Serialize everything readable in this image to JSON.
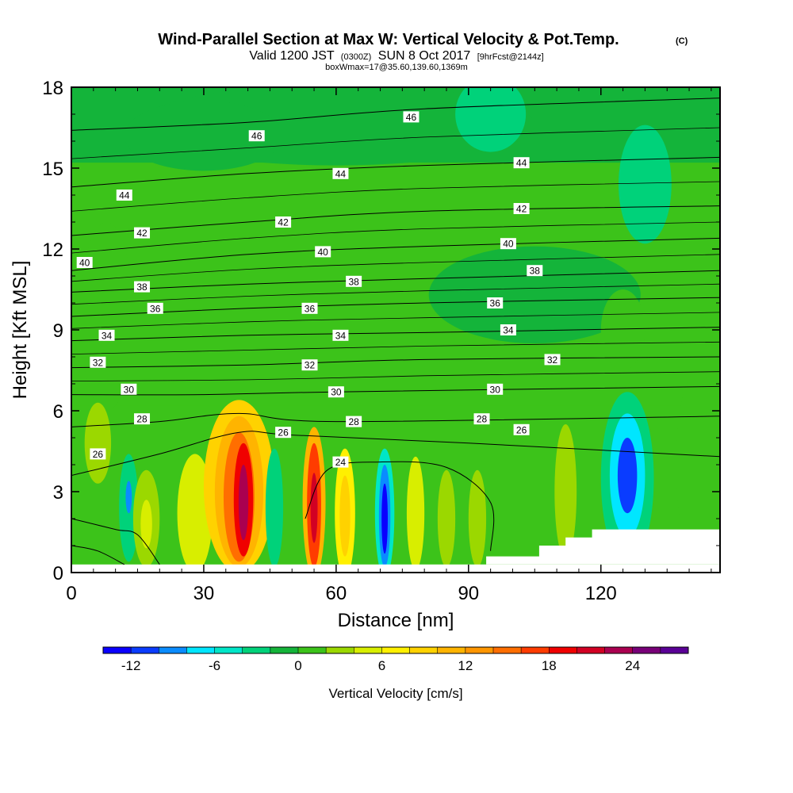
{
  "header": {
    "title": "Wind-Parallel Section at Max W: Vertical Velocity & Pot.Temp.",
    "copyright": "(C)",
    "valid_prefix": "Valid 1200 JST",
    "valid_utc": "(0300Z)",
    "valid_date": "SUN 8 Oct 2017",
    "forecast": "[9hrFcst@2144z]",
    "boxwmax": "boxWmax=17@35.60,139.60,1369m"
  },
  "chart_data": {
    "type": "heatmap",
    "xlabel": "Distance [nm]",
    "ylabel": "Height [Kft MSL]",
    "xlim": [
      0,
      147
    ],
    "ylim": [
      0,
      18
    ],
    "x_ticks": [
      0,
      30,
      60,
      90,
      120
    ],
    "y_ticks": [
      0,
      3,
      6,
      9,
      12,
      15,
      18
    ],
    "colorbar": {
      "label": "Vertical Velocity [cm/s]",
      "tick_values": [
        -12,
        -6,
        0,
        6,
        12,
        18,
        24
      ],
      "tick_labels": [
        "-12",
        "-6",
        "0",
        "6",
        "12",
        "18",
        "24"
      ],
      "bins": [
        -14,
        -12,
        -10,
        -8,
        -6,
        -4,
        -2,
        0,
        2,
        4,
        6,
        8,
        10,
        12,
        14,
        16,
        18,
        20,
        22,
        24,
        26,
        28
      ],
      "colors": [
        "#0a00ff",
        "#0a3cff",
        "#0a8cff",
        "#00e6ff",
        "#00e6c8",
        "#00d27a",
        "#14b43a",
        "#3cc31a",
        "#9bd800",
        "#d8ee00",
        "#fff000",
        "#ffd200",
        "#ffb400",
        "#ff9600",
        "#ff6e00",
        "#ff3c00",
        "#f00000",
        "#d20023",
        "#aa0050",
        "#780078",
        "#5a0096"
      ]
    },
    "background_value": 0.5,
    "cells": [
      {
        "x0": 0,
        "x1": 147,
        "y0": 15.2,
        "y1": 18,
        "value": -1
      },
      {
        "x0": 0,
        "x1": 147,
        "y0": 12.5,
        "y1": 15.2,
        "value": 0.5
      },
      {
        "x0": 0,
        "x1": 147,
        "y0": 6.2,
        "y1": 12.5,
        "value": 0.5
      },
      {
        "x0": 0,
        "x1": 147,
        "y0": 0.3,
        "y1": 6.2,
        "value": 0.5
      }
    ],
    "features": [
      {
        "cx": 60,
        "cy": 16.6,
        "rx": 45,
        "ry": 1.5,
        "value": -2
      },
      {
        "cx": 95,
        "cy": 17.0,
        "rx": 8,
        "ry": 1.4,
        "value": -3
      },
      {
        "cx": 130,
        "cy": 14.4,
        "rx": 6,
        "ry": 2.2,
        "value": -3
      },
      {
        "cx": 105,
        "cy": 10.3,
        "rx": 24,
        "ry": 1.8,
        "value": -2
      },
      {
        "cx": 30,
        "cy": 16.2,
        "rx": 18,
        "ry": 1.3,
        "value": -1.5
      },
      {
        "cx": 8,
        "cy": 9.5,
        "rx": 6,
        "ry": 3.5,
        "value": 1
      },
      {
        "cx": 125,
        "cy": 9.0,
        "rx": 5,
        "ry": 1.5,
        "value": 1
      },
      {
        "cx": 142,
        "cy": 4.0,
        "rx": 5,
        "ry": 3.5,
        "value": 1
      },
      {
        "cx": 6,
        "cy": 4.8,
        "rx": 3,
        "ry": 1.5,
        "value": 3
      },
      {
        "cx": 13,
        "cy": 2.4,
        "rx": 2.2,
        "ry": 2.0,
        "value": -4
      },
      {
        "cx": 13,
        "cy": 2.8,
        "rx": 0.7,
        "ry": 0.6,
        "value": -9
      },
      {
        "cx": 17,
        "cy": 2.0,
        "rx": 3,
        "ry": 1.8,
        "value": 3
      },
      {
        "cx": 17,
        "cy": 1.8,
        "rx": 1.3,
        "ry": 0.9,
        "value": 5
      },
      {
        "cx": 28,
        "cy": 2.2,
        "rx": 4,
        "ry": 2.2,
        "value": 5
      },
      {
        "cx": 38,
        "cy": 3.2,
        "rx": 8,
        "ry": 3.2,
        "value": 8
      },
      {
        "cx": 38,
        "cy": 3.0,
        "rx": 5.5,
        "ry": 2.8,
        "value": 11
      },
      {
        "cx": 38,
        "cy": 2.8,
        "rx": 3.5,
        "ry": 2.4,
        "value": 15
      },
      {
        "cx": 39,
        "cy": 2.7,
        "rx": 2.2,
        "ry": 2.1,
        "value": 19
      },
      {
        "cx": 39,
        "cy": 2.6,
        "rx": 1.1,
        "ry": 1.4,
        "value": 23
      },
      {
        "cx": 46,
        "cy": 2.4,
        "rx": 2.0,
        "ry": 2.2,
        "value": -4
      },
      {
        "cx": 55,
        "cy": 2.6,
        "rx": 2.6,
        "ry": 2.8,
        "value": 11
      },
      {
        "cx": 55,
        "cy": 2.5,
        "rx": 1.6,
        "ry": 2.3,
        "value": 17
      },
      {
        "cx": 55,
        "cy": 2.4,
        "rx": 0.8,
        "ry": 1.3,
        "value": 21
      },
      {
        "cx": 62,
        "cy": 2.2,
        "rx": 2.3,
        "ry": 2.4,
        "value": 7
      },
      {
        "cx": 62,
        "cy": 2.1,
        "rx": 1.2,
        "ry": 1.5,
        "value": 9
      },
      {
        "cx": 71,
        "cy": 2.2,
        "rx": 2.2,
        "ry": 2.4,
        "value": -5
      },
      {
        "cx": 71,
        "cy": 2.1,
        "rx": 1.3,
        "ry": 1.9,
        "value": -9
      },
      {
        "cx": 71,
        "cy": 2.0,
        "rx": 0.7,
        "ry": 1.3,
        "value": -13
      },
      {
        "cx": 78,
        "cy": 2.2,
        "rx": 2.0,
        "ry": 2.1,
        "value": 5
      },
      {
        "cx": 85,
        "cy": 2.0,
        "rx": 2.0,
        "ry": 1.8,
        "value": 3
      },
      {
        "cx": 92,
        "cy": 2.0,
        "rx": 2.0,
        "ry": 1.8,
        "value": 2.5
      },
      {
        "cx": 112,
        "cy": 3.0,
        "rx": 2.5,
        "ry": 2.5,
        "value": 2.5
      },
      {
        "cx": 126,
        "cy": 3.5,
        "rx": 6,
        "ry": 3.2,
        "value": -4
      },
      {
        "cx": 126,
        "cy": 3.6,
        "rx": 4,
        "ry": 2.3,
        "value": -7
      },
      {
        "cx": 126,
        "cy": 3.6,
        "rx": 2.2,
        "ry": 1.4,
        "value": -11
      }
    ],
    "terrain": [
      [
        94,
        0.3
      ],
      [
        94,
        0.6
      ],
      [
        106,
        0.6
      ],
      [
        106,
        1.0
      ],
      [
        112,
        1.0
      ],
      [
        112,
        1.3
      ],
      [
        118,
        1.3
      ],
      [
        118,
        1.6
      ],
      [
        147,
        1.6
      ],
      [
        147,
        0.3
      ]
    ],
    "theta_lines": [
      {
        "label": "46",
        "pts": [
          [
            0,
            16.4
          ],
          [
            40,
            16.7
          ],
          [
            80,
            17.2
          ],
          [
            147,
            17.6
          ]
        ]
      },
      {
        "label": "44",
        "pts": [
          [
            0,
            14.3
          ],
          [
            40,
            14.8
          ],
          [
            80,
            15.1
          ],
          [
            147,
            15.4
          ]
        ]
      },
      {
        "label": "42",
        "pts": [
          [
            0,
            12.5
          ],
          [
            40,
            13.0
          ],
          [
            80,
            13.4
          ],
          [
            147,
            13.6
          ]
        ]
      },
      {
        "label": "40",
        "pts": [
          [
            0,
            11.2
          ],
          [
            40,
            11.8
          ],
          [
            80,
            12.1
          ],
          [
            147,
            12.4
          ]
        ]
      },
      {
        "label": "38",
        "pts": [
          [
            0,
            10.4
          ],
          [
            40,
            10.7
          ],
          [
            80,
            10.9
          ],
          [
            147,
            11.2
          ]
        ]
      },
      {
        "label": "36",
        "pts": [
          [
            0,
            9.5
          ],
          [
            40,
            9.8
          ],
          [
            80,
            10.0
          ],
          [
            147,
            10.2
          ]
        ]
      },
      {
        "label": "34",
        "pts": [
          [
            0,
            8.6
          ],
          [
            40,
            8.8
          ],
          [
            80,
            8.9
          ],
          [
            147,
            9.1
          ]
        ]
      },
      {
        "label": "32",
        "pts": [
          [
            0,
            7.6
          ],
          [
            40,
            7.7
          ],
          [
            80,
            7.9
          ],
          [
            147,
            8.0
          ]
        ]
      },
      {
        "label": "30",
        "pts": [
          [
            0,
            6.6
          ],
          [
            30,
            6.6
          ],
          [
            60,
            6.7
          ],
          [
            147,
            6.9
          ]
        ]
      },
      {
        "label": "28",
        "pts": [
          [
            0,
            5.4
          ],
          [
            20,
            5.6
          ],
          [
            38,
            5.9
          ],
          [
            60,
            5.6
          ],
          [
            147,
            5.8
          ]
        ]
      },
      {
        "label": "26",
        "pts": [
          [
            0,
            3.6
          ],
          [
            20,
            4.4
          ],
          [
            38,
            5.2
          ],
          [
            50,
            5.1
          ],
          [
            90,
            4.8
          ],
          [
            147,
            4.3
          ]
        ]
      },
      {
        "label": "24",
        "pts": [
          [
            53,
            2.0
          ],
          [
            58,
            3.8
          ],
          [
            70,
            4.1
          ],
          [
            85,
            3.9
          ],
          [
            95,
            2.6
          ],
          [
            95,
            0.8
          ]
        ]
      },
      {
        "label": "",
        "pts": [
          [
            0,
            2.0
          ],
          [
            10,
            1.6
          ],
          [
            15,
            1.4
          ],
          [
            20,
            0.3
          ]
        ]
      },
      {
        "label": "",
        "pts": [
          [
            0,
            1.0
          ],
          [
            6,
            0.8
          ],
          [
            12,
            0.3
          ]
        ]
      }
    ],
    "theta_labels": [
      {
        "text": "46",
        "x": 42.0,
        "y": 16.2
      },
      {
        "text": "46",
        "x": 77.0,
        "y": 16.9
      },
      {
        "text": "44",
        "x": 102.0,
        "y": 15.2
      },
      {
        "text": "44",
        "x": 61.0,
        "y": 14.8
      },
      {
        "text": "44",
        "x": 12.0,
        "y": 14.0
      },
      {
        "text": "42",
        "x": 102.0,
        "y": 13.5
      },
      {
        "text": "42",
        "x": 48.0,
        "y": 13.0
      },
      {
        "text": "42",
        "x": 16.0,
        "y": 12.6
      },
      {
        "text": "40",
        "x": 3.0,
        "y": 11.5
      },
      {
        "text": "40",
        "x": 57.0,
        "y": 11.9
      },
      {
        "text": "40",
        "x": 99.0,
        "y": 12.2
      },
      {
        "text": "38",
        "x": 16.0,
        "y": 10.6
      },
      {
        "text": "38",
        "x": 64.0,
        "y": 10.8
      },
      {
        "text": "38",
        "x": 105.0,
        "y": 11.2
      },
      {
        "text": "36",
        "x": 19.0,
        "y": 9.8
      },
      {
        "text": "36",
        "x": 54.0,
        "y": 9.8
      },
      {
        "text": "36",
        "x": 96.0,
        "y": 10.0
      },
      {
        "text": "34",
        "x": 8.0,
        "y": 8.8
      },
      {
        "text": "34",
        "x": 61.0,
        "y": 8.8
      },
      {
        "text": "34",
        "x": 99.0,
        "y": 9.0
      },
      {
        "text": "32",
        "x": 6.0,
        "y": 7.8
      },
      {
        "text": "32",
        "x": 54.0,
        "y": 7.7
      },
      {
        "text": "32",
        "x": 109.0,
        "y": 7.9
      },
      {
        "text": "30",
        "x": 13.0,
        "y": 6.8
      },
      {
        "text": "30",
        "x": 60.0,
        "y": 6.7
      },
      {
        "text": "30",
        "x": 96.0,
        "y": 6.8
      },
      {
        "text": "28",
        "x": 16.0,
        "y": 5.7
      },
      {
        "text": "28",
        "x": 64.0,
        "y": 5.6
      },
      {
        "text": "28",
        "x": 93.0,
        "y": 5.7
      },
      {
        "text": "26",
        "x": 6.0,
        "y": 4.4
      },
      {
        "text": "26",
        "x": 48.0,
        "y": 5.2
      },
      {
        "text": "26",
        "x": 102.0,
        "y": 5.3
      },
      {
        "text": "24",
        "x": 61.0,
        "y": 4.1
      }
    ]
  }
}
